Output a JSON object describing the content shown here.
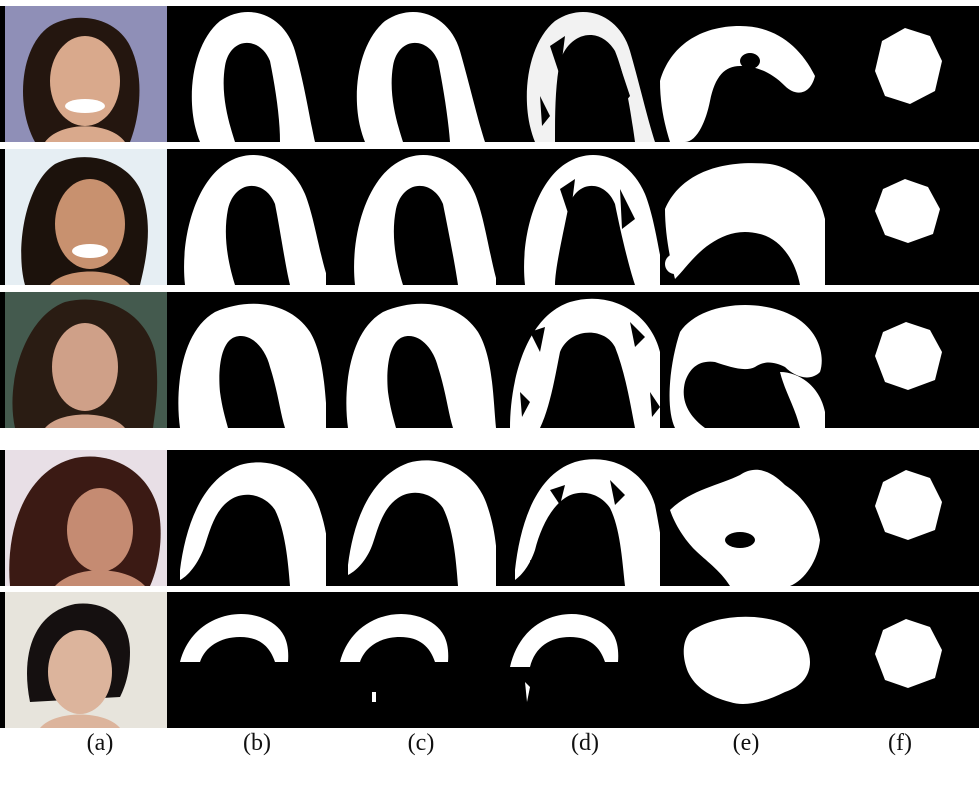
{
  "figure": {
    "captions": [
      "(a)",
      "(b)",
      "(c)",
      "(d)",
      "(e)",
      "(f)"
    ],
    "rows": [
      {
        "id": "row-1",
        "skin": "#d9a98c",
        "hair": "#24160f",
        "bg": "#8f8fb7"
      },
      {
        "id": "row-2",
        "skin": "#c8916f",
        "hair": "#1c120c",
        "bg": "#e6eef3"
      },
      {
        "id": "row-3",
        "skin": "#cfa088",
        "hair": "#2a1c13",
        "bg": "#445a4e"
      },
      {
        "id": "row-4",
        "skin": "#c58b72",
        "hair": "#3b1a14",
        "bg": "#e8dfe6"
      },
      {
        "id": "row-5",
        "skin": "#dcb49c",
        "hair": "#151010",
        "bg": "#e7e4dc"
      }
    ]
  }
}
